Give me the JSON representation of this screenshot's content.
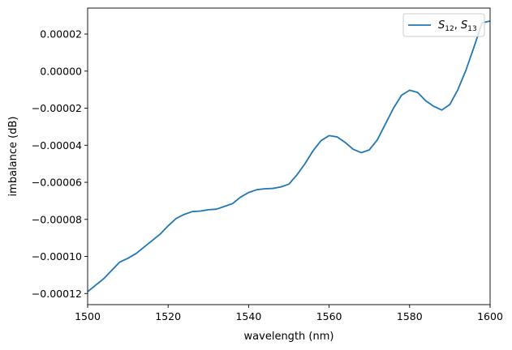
{
  "chart_data": {
    "type": "line",
    "xlabel": "wavelength (nm)",
    "ylabel": "imbalance (dB)",
    "xlim": [
      1500,
      1600
    ],
    "ylim": [
      -0.000126,
      3.4e-05
    ],
    "xticks": [
      1500,
      1520,
      1540,
      1560,
      1580,
      1600
    ],
    "xtick_labels": [
      "1500",
      "1520",
      "1540",
      "1560",
      "1580",
      "1600"
    ],
    "yticks": [
      -0.00012,
      -0.0001,
      -8e-05,
      -6e-05,
      -4e-05,
      -2e-05,
      0.0,
      2e-05
    ],
    "ytick_labels": [
      "−0.00012",
      "−0.00010",
      "−0.00008",
      "−0.00006",
      "−0.00004",
      "−0.00002",
      "0.00000",
      "0.00002"
    ],
    "grid": false,
    "legend_position": "upper right",
    "series": [
      {
        "name": "S12, S13",
        "legend": {
          "base1": "S",
          "sub1": "12",
          "sep": ", ",
          "base2": "S",
          "sub2": "13"
        },
        "color": "#1f77b4",
        "x": [
          1500,
          1502,
          1504,
          1506,
          1508,
          1510,
          1512,
          1514,
          1516,
          1518,
          1520,
          1522,
          1524,
          1526,
          1528,
          1530,
          1532,
          1534,
          1536,
          1538,
          1540,
          1542,
          1544,
          1546,
          1548,
          1550,
          1552,
          1554,
          1556,
          1558,
          1560,
          1562,
          1564,
          1566,
          1568,
          1570,
          1572,
          1574,
          1576,
          1578,
          1580,
          1582,
          1584,
          1586,
          1588,
          1590,
          1592,
          1594,
          1596,
          1598,
          1600
        ],
        "y": [
          -0.000119,
          -0.0001155,
          -0.000112,
          -0.0001075,
          -0.000103,
          -0.000101,
          -9.85e-05,
          -9.5e-05,
          -9.15e-05,
          -8.8e-05,
          -8.35e-05,
          -7.95e-05,
          -7.73e-05,
          -7.58e-05,
          -7.55e-05,
          -7.48e-05,
          -7.45e-05,
          -7.3e-05,
          -7.15e-05,
          -6.8e-05,
          -6.55e-05,
          -6.4e-05,
          -6.35e-05,
          -6.33e-05,
          -6.25e-05,
          -6.1e-05,
          -5.6e-05,
          -5e-05,
          -4.3e-05,
          -3.75e-05,
          -3.48e-05,
          -3.55e-05,
          -3.85e-05,
          -4.22e-05,
          -4.4e-05,
          -4.25e-05,
          -3.7e-05,
          -2.85e-05,
          -2e-05,
          -1.3e-05,
          -1.03e-05,
          -1.15e-05,
          -1.6e-05,
          -1.9e-05,
          -2.1e-05,
          -1.8e-05,
          -1e-05,
          5e-07,
          1.3e-05,
          2.6e-05,
          2.7e-05
        ]
      }
    ]
  }
}
